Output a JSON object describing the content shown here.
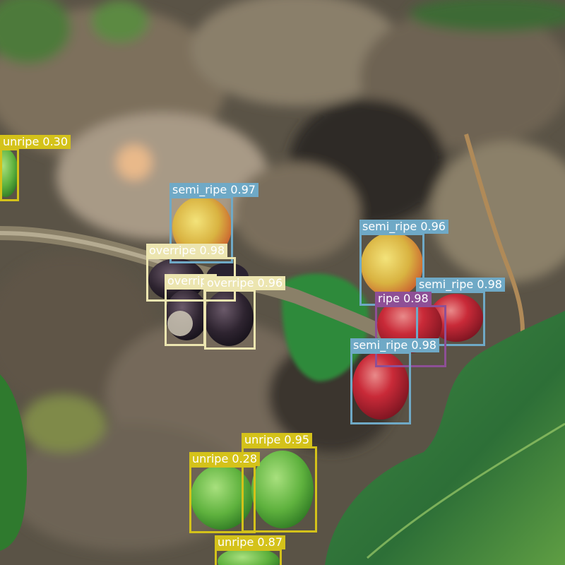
{
  "image": {
    "description_icon": "coffee-cherries-photo"
  },
  "class_colors": {
    "unripe": "#d4c21a",
    "semi_ripe": "#6fa9c6",
    "ripe": "#8e4f96",
    "overripe": "#ece5b0"
  },
  "detections": [
    {
      "label": "unripe 0.30",
      "cls": "unripe"
    },
    {
      "label": "semi_ripe 0.97",
      "cls": "semi_ripe"
    },
    {
      "label": "overripe 0.98",
      "cls": "overripe"
    },
    {
      "label": "overripe",
      "cls": "overripe"
    },
    {
      "label": "overripe 0.96",
      "cls": "overripe"
    },
    {
      "label": "semi_ripe 0.96",
      "cls": "semi_ripe"
    },
    {
      "label": "semi_ripe 0.98",
      "cls": "semi_ripe"
    },
    {
      "label": "ripe 0.98",
      "cls": "ripe"
    },
    {
      "label": "semi_ripe 0.98",
      "cls": "semi_ripe"
    },
    {
      "label": "unripe 0.95",
      "cls": "unripe"
    },
    {
      "label": "unripe 0.28",
      "cls": "unripe"
    },
    {
      "label": "unripe 0.87",
      "cls": "unripe"
    }
  ]
}
